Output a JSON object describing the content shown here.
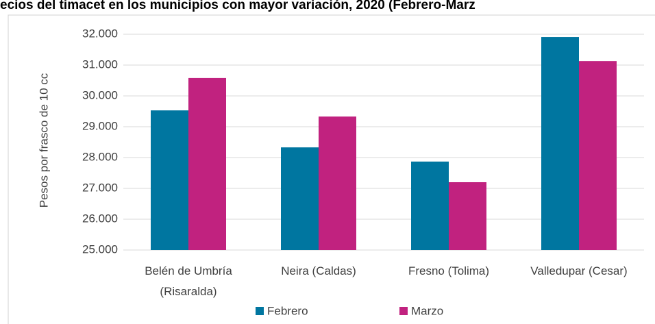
{
  "chart_data": {
    "type": "bar",
    "title": "ecios del timacet en los municipios con mayor variación, 2020 (Febrero-Marz",
    "y_label": "Pesos por frasco de 10 cc",
    "categories": [
      "Belén de Umbría (Risaralda)",
      "Neira (Caldas)",
      "Fresno (Tolima)",
      "Valledupar (Cesar)"
    ],
    "series": [
      {
        "name": "Febrero",
        "color": "#0076a0",
        "values": [
          29530,
          28330,
          27870,
          31910
        ]
      },
      {
        "name": "Marzo",
        "color": "#c1227f",
        "values": [
          30580,
          29330,
          27200,
          31130
        ]
      }
    ],
    "ylim": [
      25000,
      32000
    ],
    "yticks": [
      {
        "value": 25000,
        "label": "25.000"
      },
      {
        "value": 26000,
        "label": "26.000"
      },
      {
        "value": 27000,
        "label": "27.000"
      },
      {
        "value": 28000,
        "label": "28.000"
      },
      {
        "value": 29000,
        "label": "29.000"
      },
      {
        "value": 30000,
        "label": "30.000"
      },
      {
        "value": 31000,
        "label": "31.000"
      },
      {
        "value": 32000,
        "label": "32.000"
      }
    ],
    "grid": true,
    "legend": "bottom"
  }
}
